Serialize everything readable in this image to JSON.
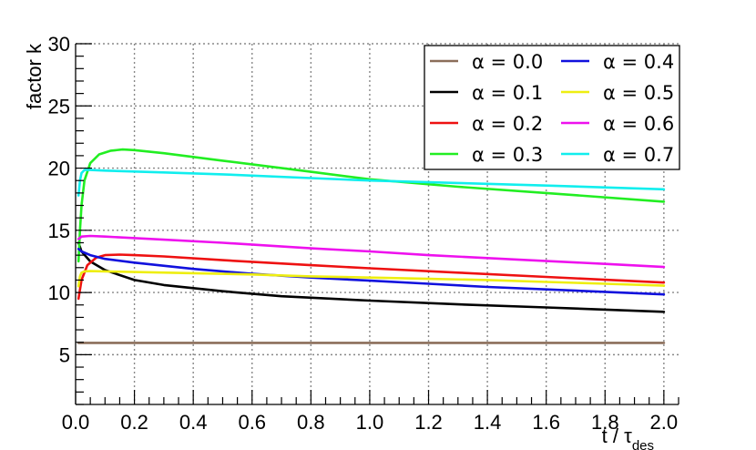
{
  "chart_data": {
    "type": "line",
    "xlabel": "t / τ",
    "xlabel_sub": "des",
    "ylabel": "factor k",
    "xlim": [
      0.0,
      2.05
    ],
    "ylim": [
      1,
      30
    ],
    "grid": true,
    "legend_position": "top-right",
    "x_ticks": [
      "0.0",
      "0.2",
      "0.4",
      "0.6",
      "0.8",
      "1.0",
      "1.2",
      "1.4",
      "1.6",
      "1.8",
      "2.0"
    ],
    "x_tick_values": [
      0,
      0.2,
      0.4,
      0.6,
      0.8,
      1.0,
      1.2,
      1.4,
      1.6,
      1.8,
      2.0
    ],
    "y_ticks": [
      "5",
      "10",
      "15",
      "20",
      "25",
      "30"
    ],
    "y_tick_values": [
      5,
      10,
      15,
      20,
      25,
      30
    ],
    "series": [
      {
        "name": "α = 0.0",
        "color": "#8b6e5a",
        "x": [
          0.01,
          0.5,
          1.0,
          1.5,
          2.0
        ],
        "y": [
          5.95,
          5.95,
          5.95,
          5.95,
          5.95
        ]
      },
      {
        "name": "α = 0.1",
        "color": "#000000",
        "x": [
          0.01,
          0.02,
          0.05,
          0.1,
          0.2,
          0.3,
          0.5,
          0.7,
          1.0,
          1.3,
          1.6,
          2.0
        ],
        "y": [
          14.0,
          13.3,
          12.5,
          11.8,
          11.0,
          10.6,
          10.1,
          9.7,
          9.35,
          9.05,
          8.8,
          8.45
        ]
      },
      {
        "name": "α = 0.2",
        "color": "#ee1111",
        "x": [
          0.01,
          0.02,
          0.04,
          0.07,
          0.1,
          0.15,
          0.2,
          0.3,
          0.5,
          0.8,
          1.0,
          1.3,
          1.6,
          2.0
        ],
        "y": [
          9.5,
          11.0,
          12.2,
          12.8,
          13.0,
          13.05,
          13.0,
          12.9,
          12.6,
          12.2,
          11.95,
          11.6,
          11.25,
          10.8
        ]
      },
      {
        "name": "α = 0.3",
        "color": "#22ee22",
        "x": [
          0.01,
          0.015,
          0.02,
          0.03,
          0.05,
          0.08,
          0.12,
          0.16,
          0.2,
          0.3,
          0.5,
          0.8,
          1.0,
          1.3,
          1.6,
          2.0
        ],
        "y": [
          12.5,
          15.0,
          17.0,
          19.0,
          20.4,
          21.1,
          21.4,
          21.5,
          21.45,
          21.2,
          20.6,
          19.7,
          19.1,
          18.5,
          18.0,
          17.3
        ]
      },
      {
        "name": "α = 0.4",
        "color": "#1111dd",
        "x": [
          0.01,
          0.02,
          0.05,
          0.1,
          0.2,
          0.4,
          0.6,
          0.8,
          1.0,
          1.2,
          1.4,
          1.6,
          1.8,
          2.0
        ],
        "y": [
          13.5,
          13.3,
          13.0,
          12.7,
          12.4,
          11.9,
          11.5,
          11.2,
          10.95,
          10.7,
          10.45,
          10.25,
          10.05,
          9.85
        ]
      },
      {
        "name": "α = 0.5",
        "color": "#eeee11",
        "x": [
          0.01,
          0.015,
          0.02,
          0.03,
          0.05,
          0.1,
          0.2,
          0.4,
          0.6,
          0.8,
          1.0,
          1.2,
          1.4,
          1.6,
          1.8,
          2.0
        ],
        "y": [
          10.5,
          11.3,
          11.6,
          11.7,
          11.72,
          11.7,
          11.65,
          11.55,
          11.45,
          11.3,
          11.2,
          11.1,
          11.0,
          10.85,
          10.7,
          10.55
        ]
      },
      {
        "name": "α = 0.6",
        "color": "#ee11ee",
        "x": [
          0.01,
          0.02,
          0.05,
          0.1,
          0.3,
          0.5,
          0.8,
          1.0,
          1.2,
          1.5,
          1.8,
          2.0
        ],
        "y": [
          14.3,
          14.5,
          14.55,
          14.5,
          14.25,
          14.0,
          13.55,
          13.3,
          13.0,
          12.65,
          12.3,
          12.05
        ]
      },
      {
        "name": "α = 0.7",
        "color": "#11eeee",
        "x": [
          0.01,
          0.015,
          0.02,
          0.03,
          0.05,
          0.1,
          0.3,
          0.5,
          0.8,
          1.0,
          1.3,
          1.6,
          2.0
        ],
        "y": [
          17.8,
          19.0,
          19.6,
          19.85,
          19.85,
          19.8,
          19.65,
          19.5,
          19.2,
          19.0,
          18.8,
          18.6,
          18.3
        ]
      }
    ]
  }
}
